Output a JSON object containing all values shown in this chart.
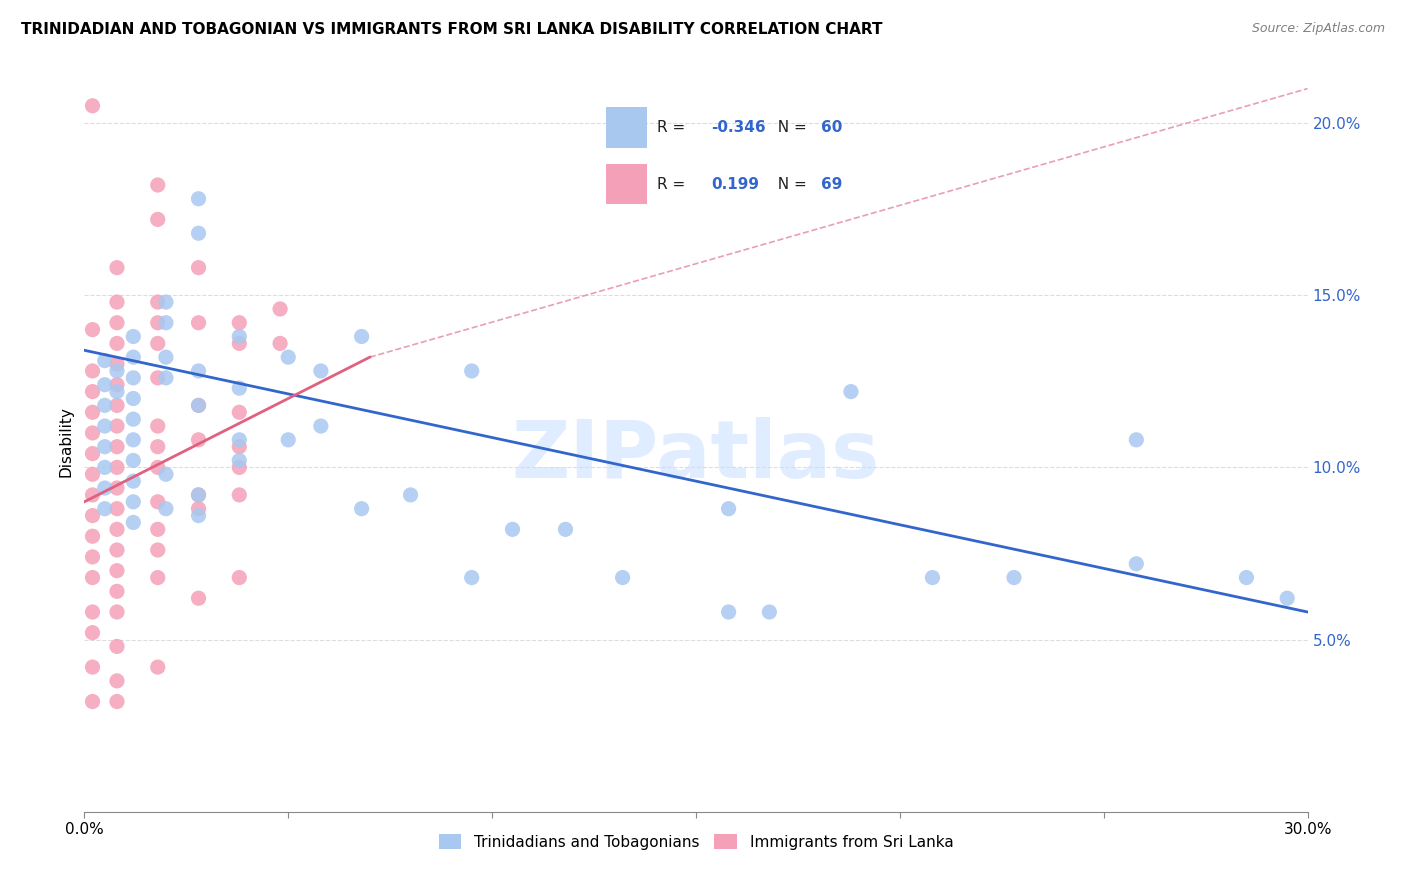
{
  "title": "TRINIDADIAN AND TOBAGONIAN VS IMMIGRANTS FROM SRI LANKA DISABILITY CORRELATION CHART",
  "source": "Source: ZipAtlas.com",
  "ylabel": "Disability",
  "right_yticks": [
    "5.0%",
    "10.0%",
    "15.0%",
    "20.0%"
  ],
  "right_ytick_vals": [
    0.05,
    0.1,
    0.15,
    0.2
  ],
  "xlim": [
    0.0,
    0.3
  ],
  "ylim": [
    0.0,
    0.215
  ],
  "legend_label_blue": "Trinidadians and Tobagonians",
  "legend_label_pink": "Immigrants from Sri Lanka",
  "blue_color": "#A8C8F0",
  "pink_color": "#F4A0B8",
  "blue_line_color": "#3366CC",
  "pink_line_color": "#E06080",
  "dashed_line_color": "#E8A0B0",
  "watermark": "ZIPatlas",
  "blue_scatter": [
    [
      0.005,
      0.131
    ],
    [
      0.005,
      0.124
    ],
    [
      0.005,
      0.118
    ],
    [
      0.005,
      0.112
    ],
    [
      0.005,
      0.106
    ],
    [
      0.005,
      0.1
    ],
    [
      0.005,
      0.094
    ],
    [
      0.005,
      0.088
    ],
    [
      0.008,
      0.128
    ],
    [
      0.008,
      0.122
    ],
    [
      0.012,
      0.138
    ],
    [
      0.012,
      0.132
    ],
    [
      0.012,
      0.126
    ],
    [
      0.012,
      0.12
    ],
    [
      0.012,
      0.114
    ],
    [
      0.012,
      0.108
    ],
    [
      0.012,
      0.102
    ],
    [
      0.012,
      0.096
    ],
    [
      0.012,
      0.09
    ],
    [
      0.012,
      0.084
    ],
    [
      0.02,
      0.148
    ],
    [
      0.02,
      0.142
    ],
    [
      0.02,
      0.132
    ],
    [
      0.02,
      0.126
    ],
    [
      0.02,
      0.098
    ],
    [
      0.02,
      0.088
    ],
    [
      0.028,
      0.178
    ],
    [
      0.028,
      0.168
    ],
    [
      0.028,
      0.128
    ],
    [
      0.028,
      0.118
    ],
    [
      0.028,
      0.092
    ],
    [
      0.028,
      0.086
    ],
    [
      0.038,
      0.138
    ],
    [
      0.038,
      0.123
    ],
    [
      0.038,
      0.108
    ],
    [
      0.038,
      0.102
    ],
    [
      0.05,
      0.132
    ],
    [
      0.05,
      0.108
    ],
    [
      0.058,
      0.128
    ],
    [
      0.058,
      0.112
    ],
    [
      0.068,
      0.138
    ],
    [
      0.068,
      0.088
    ],
    [
      0.08,
      0.092
    ],
    [
      0.095,
      0.128
    ],
    [
      0.095,
      0.068
    ],
    [
      0.105,
      0.082
    ],
    [
      0.118,
      0.082
    ],
    [
      0.132,
      0.068
    ],
    [
      0.158,
      0.088
    ],
    [
      0.158,
      0.058
    ],
    [
      0.168,
      0.058
    ],
    [
      0.188,
      0.122
    ],
    [
      0.208,
      0.068
    ],
    [
      0.228,
      0.068
    ],
    [
      0.258,
      0.108
    ],
    [
      0.258,
      0.072
    ],
    [
      0.285,
      0.068
    ],
    [
      0.295,
      0.062
    ]
  ],
  "pink_scatter": [
    [
      0.002,
      0.205
    ],
    [
      0.002,
      0.14
    ],
    [
      0.002,
      0.128
    ],
    [
      0.002,
      0.122
    ],
    [
      0.002,
      0.116
    ],
    [
      0.002,
      0.11
    ],
    [
      0.002,
      0.104
    ],
    [
      0.002,
      0.098
    ],
    [
      0.002,
      0.092
    ],
    [
      0.002,
      0.086
    ],
    [
      0.002,
      0.08
    ],
    [
      0.002,
      0.074
    ],
    [
      0.002,
      0.068
    ],
    [
      0.002,
      0.058
    ],
    [
      0.002,
      0.052
    ],
    [
      0.002,
      0.042
    ],
    [
      0.008,
      0.158
    ],
    [
      0.008,
      0.148
    ],
    [
      0.008,
      0.142
    ],
    [
      0.008,
      0.136
    ],
    [
      0.008,
      0.13
    ],
    [
      0.008,
      0.124
    ],
    [
      0.008,
      0.118
    ],
    [
      0.008,
      0.112
    ],
    [
      0.008,
      0.106
    ],
    [
      0.008,
      0.1
    ],
    [
      0.008,
      0.094
    ],
    [
      0.008,
      0.088
    ],
    [
      0.008,
      0.082
    ],
    [
      0.008,
      0.076
    ],
    [
      0.008,
      0.07
    ],
    [
      0.008,
      0.064
    ],
    [
      0.008,
      0.058
    ],
    [
      0.008,
      0.048
    ],
    [
      0.008,
      0.038
    ],
    [
      0.018,
      0.182
    ],
    [
      0.018,
      0.172
    ],
    [
      0.018,
      0.148
    ],
    [
      0.018,
      0.142
    ],
    [
      0.018,
      0.136
    ],
    [
      0.018,
      0.126
    ],
    [
      0.018,
      0.112
    ],
    [
      0.018,
      0.106
    ],
    [
      0.018,
      0.1
    ],
    [
      0.018,
      0.09
    ],
    [
      0.018,
      0.082
    ],
    [
      0.018,
      0.076
    ],
    [
      0.018,
      0.068
    ],
    [
      0.028,
      0.158
    ],
    [
      0.028,
      0.142
    ],
    [
      0.028,
      0.118
    ],
    [
      0.028,
      0.108
    ],
    [
      0.028,
      0.092
    ],
    [
      0.028,
      0.088
    ],
    [
      0.038,
      0.142
    ],
    [
      0.038,
      0.136
    ],
    [
      0.038,
      0.116
    ],
    [
      0.038,
      0.106
    ],
    [
      0.038,
      0.1
    ],
    [
      0.038,
      0.092
    ],
    [
      0.048,
      0.146
    ],
    [
      0.048,
      0.136
    ],
    [
      0.038,
      0.068
    ],
    [
      0.028,
      0.062
    ],
    [
      0.018,
      0.042
    ],
    [
      0.008,
      0.032
    ],
    [
      0.002,
      0.032
    ]
  ],
  "blue_trendline": [
    [
      0.0,
      0.134
    ],
    [
      0.3,
      0.058
    ]
  ],
  "pink_trendline_solid": [
    [
      0.0,
      0.09
    ],
    [
      0.07,
      0.132
    ]
  ],
  "pink_trendline_dashed": [
    [
      0.07,
      0.132
    ],
    [
      0.3,
      0.21
    ]
  ],
  "xtick_positions": [
    0.0,
    0.05,
    0.1,
    0.15,
    0.2,
    0.25,
    0.3
  ],
  "xtick_labels": [
    "0.0%",
    "",
    "",
    "",
    "",
    "",
    "30.0%"
  ]
}
